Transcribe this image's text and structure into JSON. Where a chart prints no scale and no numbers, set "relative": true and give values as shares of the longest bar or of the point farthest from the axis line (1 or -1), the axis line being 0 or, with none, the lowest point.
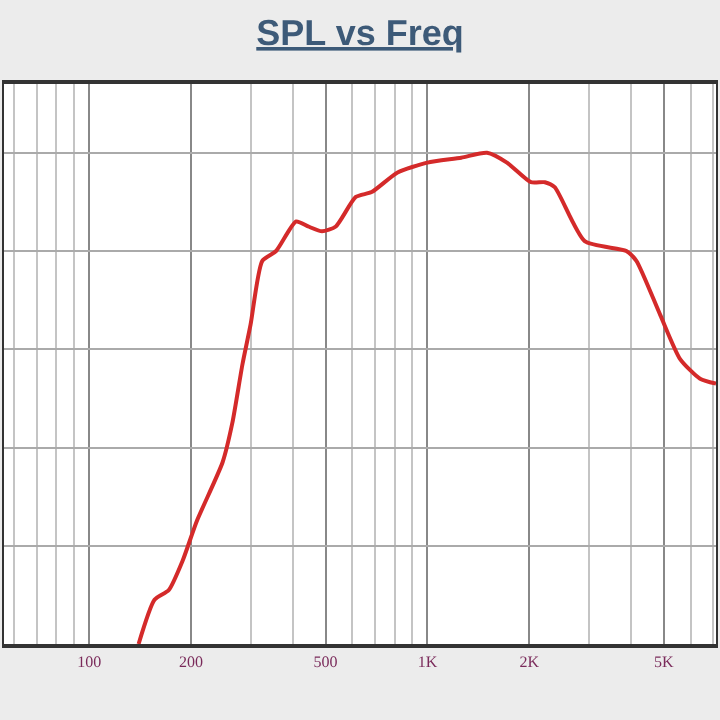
{
  "chart_data": {
    "type": "line",
    "title": "SPL vs Freq",
    "relative": true,
    "log": "x",
    "xlim": [
      56,
      7130
    ],
    "xticks": [
      100,
      200,
      500,
      {
        "value": 1000,
        "label": "1K"
      },
      {
        "value": 2000,
        "label": "2K"
      },
      {
        "value": 5000,
        "label": "5K"
      }
    ],
    "x": [
      140,
      156,
      172,
      189,
      208,
      248,
      265,
      284,
      300,
      325,
      357,
      409,
      444,
      488,
      536,
      614,
      684,
      816,
      1000,
      1259,
      1500,
      1718,
      2023,
      2224,
      2378,
      2917,
      3873,
      4147,
      4877,
      5585,
      6397,
      7130
    ],
    "series": [
      {
        "color": "#d42a2a",
        "values": [
          0,
          0.09,
          0.11,
          0.17,
          0.25,
          0.37,
          0.45,
          0.57,
          0.65,
          0.78,
          0.8,
          0.86,
          0.85,
          0.84,
          0.85,
          0.91,
          0.92,
          0.96,
          0.98,
          0.99,
          1,
          0.98,
          0.94,
          0.94,
          0.93,
          0.82,
          0.8,
          0.78,
          0.67,
          0.58,
          0.54,
          0.53
        ]
      }
    ],
    "grid": true,
    "marker": "none",
    "line_style": "solid"
  }
}
